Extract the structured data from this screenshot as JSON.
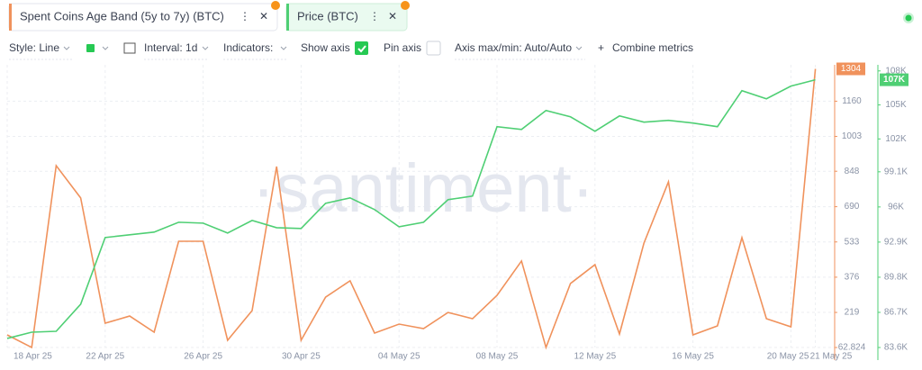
{
  "toolbar": {
    "style": "Style: Line",
    "interval": "Interval: 1d",
    "indicators": "Indicators:",
    "show_axis": "Show axis",
    "pin_axis": "Pin axis",
    "axis_minmax": "Axis max/min: Auto/Auto",
    "combine": "Combine metrics"
  },
  "watermark": "·santiment·",
  "chart_data": {
    "type": "line",
    "categories": [
      "18 Apr 25",
      null,
      null,
      null,
      "22 Apr 25",
      null,
      null,
      null,
      "26 Apr 25",
      null,
      null,
      null,
      "30 Apr 25",
      null,
      null,
      null,
      "04 May 25",
      null,
      null,
      null,
      "08 May 25",
      null,
      null,
      null,
      "12 May 25",
      null,
      null,
      null,
      "16 May 25",
      null,
      null,
      null,
      "20 May 25",
      "21 May 25"
    ],
    "series": [
      {
        "name": "Spent Coins Age Band (5y to 7y) (BTC)",
        "color": "#f0925c",
        "axis": "y",
        "values": [
          119,
          63,
          873,
          729,
          171,
          203,
          131,
          536,
          536,
          95,
          227,
          869,
          95,
          287,
          360,
          127,
          167,
          147,
          219,
          191,
          295,
          448,
          63,
          348,
          432,
          123,
          528,
          801,
          119,
          159,
          552,
          191,
          155,
          1304
        ]
      },
      {
        "name": "Price (BTC)",
        "color": "#4fcf74",
        "axis": "y2",
        "last_value_label": "107K",
        "values": [
          84400,
          84950,
          85030,
          87420,
          93300,
          93540,
          93780,
          94650,
          94570,
          93700,
          94810,
          94170,
          94100,
          96320,
          96800,
          95770,
          94250,
          94650,
          96640,
          96960,
          103080,
          102840,
          104510,
          103950,
          102680,
          104030,
          103480,
          103640,
          103400,
          103080,
          106260,
          105540,
          106660,
          107220
        ]
      }
    ],
    "ylim": [
      62.824,
      1310
    ],
    "yticks": [
      62.824,
      219,
      376,
      533,
      690,
      848,
      1003,
      1160
    ],
    "y2lim": [
      83600,
      108300
    ],
    "y2ticks": [
      {
        "value": 83600,
        "label": "83.6K"
      },
      {
        "value": 86700,
        "label": "86.7K"
      },
      {
        "value": 89800,
        "label": "89.8K"
      },
      {
        "value": 92900,
        "label": "92.9K"
      },
      {
        "value": 96000,
        "label": "96K"
      },
      {
        "value": 99100,
        "label": "99.1K"
      },
      {
        "value": 102000,
        "label": "102K"
      },
      {
        "value": 105000,
        "label": "105K"
      },
      {
        "value": 108000,
        "label": "108K"
      }
    ],
    "grid": true
  }
}
